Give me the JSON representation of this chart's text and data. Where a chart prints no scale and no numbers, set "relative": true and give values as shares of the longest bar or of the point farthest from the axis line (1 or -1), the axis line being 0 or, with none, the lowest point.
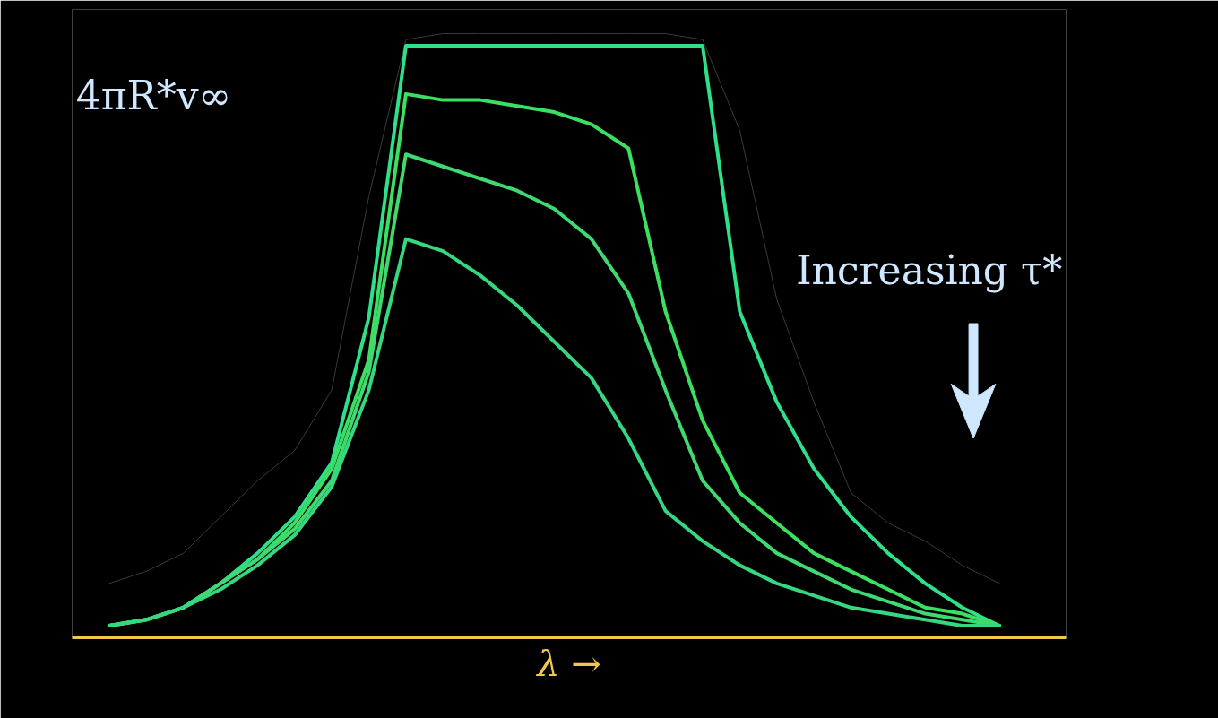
{
  "chart_data": {
    "type": "line",
    "relative": true,
    "xlabel": "λ →",
    "categories": [
      null,
      null,
      null,
      null,
      null,
      null,
      null,
      null,
      null,
      null,
      null,
      null,
      null,
      null,
      null,
      null,
      null,
      null,
      null,
      null,
      null,
      null,
      null,
      null,
      null
    ],
    "series": [
      {
        "color": "#3a3a3a",
        "values": [
          0.09,
          0.11,
          0.14,
          0.2,
          0.26,
          0.31,
          0.41,
          0.73,
          0.99,
          1.0,
          1.0,
          1.0,
          1.0,
          1.0,
          1.0,
          1.0,
          0.99,
          0.84,
          0.56,
          0.39,
          0.24,
          0.19,
          0.16,
          0.12,
          0.09
        ]
      },
      {
        "color": "#2fe08a",
        "values": [
          0.02,
          0.03,
          0.05,
          0.09,
          0.14,
          0.2,
          0.29,
          0.53,
          0.98,
          0.98,
          0.98,
          0.98,
          0.98,
          0.98,
          0.98,
          0.98,
          0.98,
          0.54,
          0.39,
          0.28,
          0.2,
          0.14,
          0.09,
          0.05,
          0.02
        ]
      },
      {
        "color": "#3ce060",
        "values": [
          0.02,
          0.03,
          0.05,
          0.09,
          0.13,
          0.19,
          0.28,
          0.46,
          0.9,
          0.89,
          0.89,
          0.88,
          0.87,
          0.85,
          0.81,
          0.54,
          0.36,
          0.24,
          0.19,
          0.14,
          0.11,
          0.08,
          0.05,
          0.04,
          0.02
        ]
      },
      {
        "color": "#40d870",
        "values": [
          0.02,
          0.03,
          0.05,
          0.09,
          0.13,
          0.18,
          0.26,
          0.44,
          0.8,
          0.78,
          0.76,
          0.74,
          0.71,
          0.66,
          0.57,
          0.41,
          0.26,
          0.19,
          0.14,
          0.11,
          0.08,
          0.06,
          0.04,
          0.03,
          0.02
        ]
      },
      {
        "color": "#35d880",
        "values": [
          0.02,
          0.03,
          0.05,
          0.08,
          0.12,
          0.17,
          0.25,
          0.41,
          0.66,
          0.64,
          0.6,
          0.55,
          0.49,
          0.43,
          0.33,
          0.21,
          0.16,
          0.12,
          0.09,
          0.07,
          0.05,
          0.04,
          0.03,
          0.02,
          0.02
        ]
      }
    ],
    "annotations": [
      "4πR*v∞",
      "Increasing τ*"
    ],
    "grid": false
  }
}
